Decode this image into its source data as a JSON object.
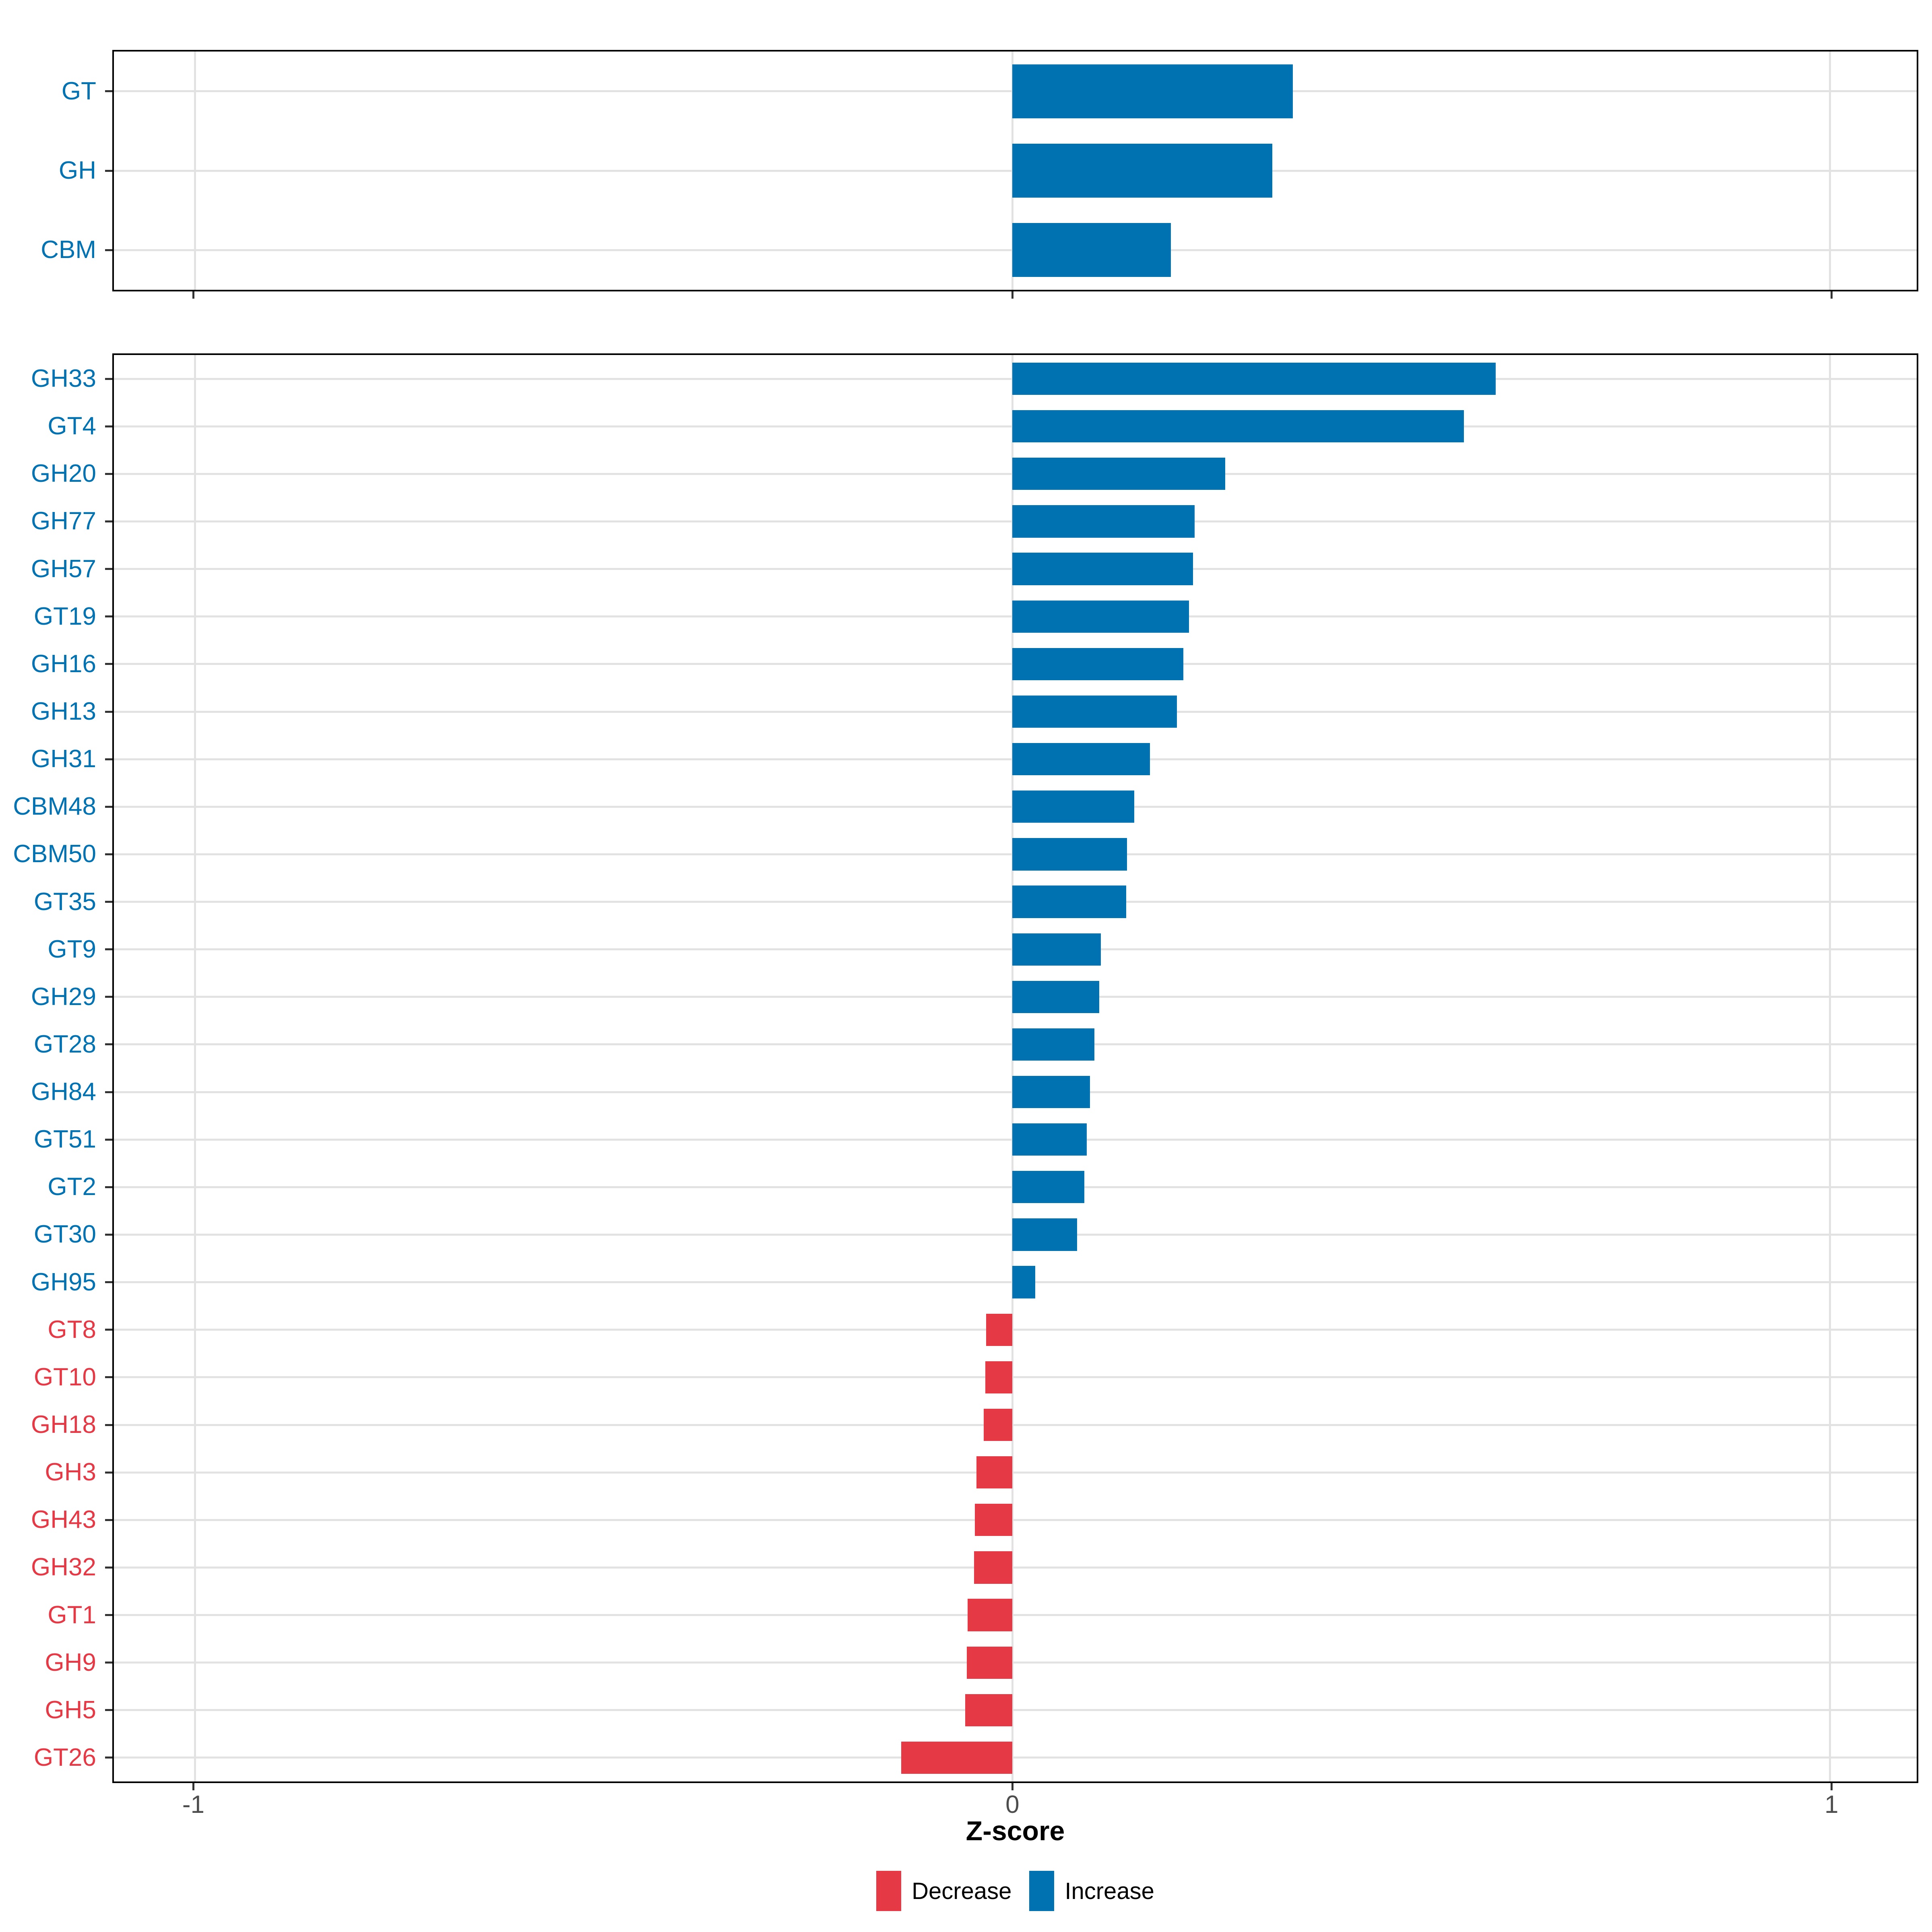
{
  "chart_data": {
    "type": "bar",
    "orientation": "horizontal",
    "xlabel": "Z-score",
    "x_ticks": [
      -1,
      0,
      1
    ],
    "x_tick_labels": [
      "-1",
      "0",
      "1"
    ],
    "xlim": [
      -1.099,
      1.106
    ],
    "grid": "major-only",
    "legend_position": "bottom",
    "colors": {
      "increase": "#0072B2",
      "decrease": "#E63946",
      "gridline": "#E2E2E2",
      "axis_text": "#4D4D4D",
      "tick_mark": "#333333",
      "panel_border": "#000000"
    },
    "legend": [
      {
        "label": "Decrease",
        "direction": "decrease",
        "color": "#E63946"
      },
      {
        "label": "Increase",
        "direction": "increase",
        "color": "#0072B2"
      }
    ],
    "panels": [
      {
        "name": "cazyme-class-summary",
        "categories": [
          "GT",
          "GH",
          "CBM"
        ],
        "values": [
          0.343,
          0.318,
          0.194
        ],
        "directions": [
          "increase",
          "increase",
          "increase"
        ]
      },
      {
        "name": "cazyme-families",
        "categories": [
          "GH33",
          "GT4",
          "GH20",
          "GH77",
          "GH57",
          "GT19",
          "GH16",
          "GH13",
          "GH31",
          "CBM48",
          "CBM50",
          "GT35",
          "GT9",
          "GH29",
          "GT28",
          "GH84",
          "GT51",
          "GT2",
          "GT30",
          "GH95",
          "GT8",
          "GT10",
          "GH18",
          "GH3",
          "GH43",
          "GH32",
          "GT1",
          "GH9",
          "GH5",
          "GT26"
        ],
        "values": [
          0.591,
          0.552,
          0.26,
          0.223,
          0.221,
          0.216,
          0.209,
          0.201,
          0.168,
          0.149,
          0.14,
          0.139,
          0.108,
          0.106,
          0.1,
          0.095,
          0.091,
          0.088,
          0.079,
          0.028,
          -0.032,
          -0.033,
          -0.035,
          -0.044,
          -0.046,
          -0.047,
          -0.055,
          -0.056,
          -0.058,
          -0.136
        ],
        "directions": [
          "increase",
          "increase",
          "increase",
          "increase",
          "increase",
          "increase",
          "increase",
          "increase",
          "increase",
          "increase",
          "increase",
          "increase",
          "increase",
          "increase",
          "increase",
          "increase",
          "increase",
          "increase",
          "increase",
          "increase",
          "decrease",
          "decrease",
          "decrease",
          "decrease",
          "decrease",
          "decrease",
          "decrease",
          "decrease",
          "decrease",
          "decrease"
        ]
      }
    ]
  }
}
